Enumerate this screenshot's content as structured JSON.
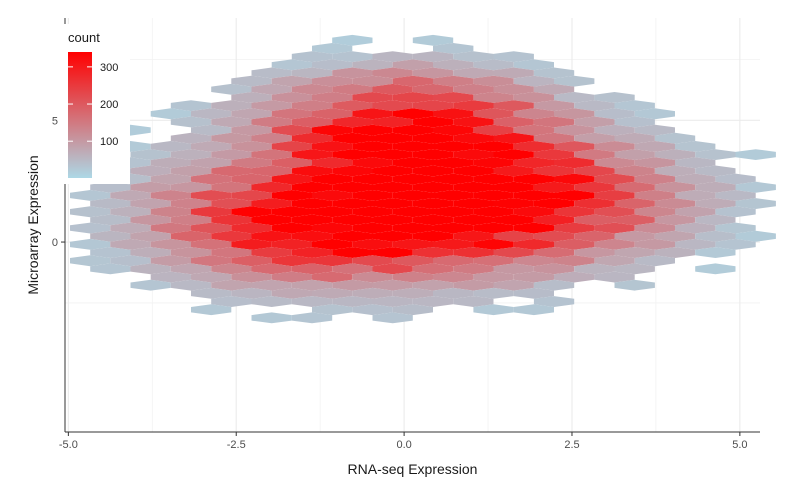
{
  "chart_data": {
    "type": "hexbin",
    "title": "",
    "xlabel": "RNA-seq Expression",
    "ylabel": "Microarray Expression",
    "xlim": [
      -5.05,
      5.3
    ],
    "ylim": [
      -7.8,
      9.2
    ],
    "x_ticks": [
      -5,
      -2.5,
      0,
      2.5,
      5
    ],
    "x_tick_labels": [
      "-5.0",
      "-2.5",
      "0.0",
      "2.5",
      "5.0"
    ],
    "y_ticks": [
      0,
      5
    ],
    "y_tick_labels": [
      "0",
      "5"
    ],
    "grid": true,
    "legend": {
      "title": "count",
      "position": "top-left",
      "ticks": [
        100,
        200,
        300
      ],
      "tick_labels": [
        "100",
        "200",
        "300"
      ],
      "range": [
        1,
        340
      ],
      "low_color": "#add8e6",
      "high_color": "#ff0000"
    },
    "hex_radius": 0.34,
    "density_components": [
      {
        "x": 0.1,
        "y": 4.7,
        "sx": 1.3,
        "sy": 1.4,
        "peak": 320
      },
      {
        "x": -1.2,
        "y": 0.8,
        "sx": 1.5,
        "sy": 1.5,
        "peak": 300
      },
      {
        "x": 1.3,
        "y": 1.7,
        "sx": 1.6,
        "sy": 1.5,
        "peak": 340
      },
      {
        "x": 0.0,
        "y": 1.5,
        "sx": 2.6,
        "sy": 2.6,
        "peak": 60
      }
    ],
    "threshold": 1
  }
}
